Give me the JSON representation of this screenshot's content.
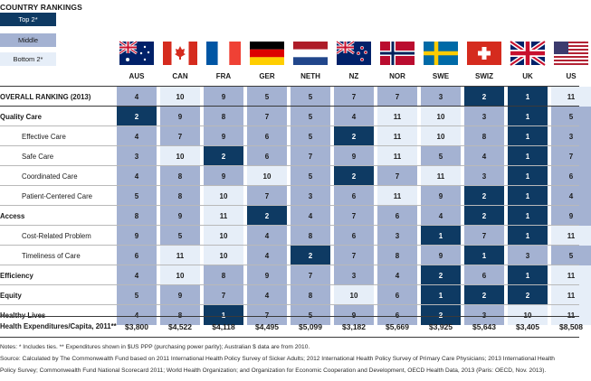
{
  "legend": {
    "title": "COUNTRY RANKINGS",
    "top": "Top 2*",
    "middle": "Middle",
    "bottom": "Bottom 2*",
    "colors": {
      "top": "#0e3a63",
      "middle": "#a4b2d2",
      "bottom": "#e6eef8"
    }
  },
  "chart_data": {
    "type": "table",
    "countries": [
      "AUS",
      "CAN",
      "FRA",
      "GER",
      "NETH",
      "NZ",
      "NOR",
      "SWE",
      "SWIZ",
      "UK",
      "US"
    ],
    "flags": [
      "flag-au-icon",
      "flag-ca-icon",
      "flag-fr-icon",
      "flag-de-icon",
      "flag-nl-icon",
      "flag-nz-icon",
      "flag-no-icon",
      "flag-se-icon",
      "flag-ch-icon",
      "flag-gb-icon",
      "flag-us-icon"
    ],
    "rows": [
      {
        "label": "OVERALL RANKING (2013)",
        "kind": "hdr",
        "ranks": [
          4,
          10,
          9,
          5,
          5,
          7,
          7,
          3,
          2,
          1,
          11
        ],
        "tiers": [
          "m",
          "b",
          "m",
          "m",
          "m",
          "m",
          "m",
          "m",
          "t",
          "t",
          "b"
        ]
      },
      {
        "label": "Quality Care",
        "kind": "main",
        "ranks": [
          2,
          9,
          8,
          7,
          5,
          4,
          11,
          10,
          3,
          1,
          5
        ],
        "tiers": [
          "t",
          "m",
          "m",
          "m",
          "m",
          "m",
          "b",
          "b",
          "m",
          "t",
          "m"
        ]
      },
      {
        "label": "Effective Care",
        "kind": "sub",
        "ranks": [
          4,
          7,
          9,
          6,
          5,
          2,
          11,
          10,
          8,
          1,
          3
        ],
        "tiers": [
          "m",
          "m",
          "m",
          "m",
          "m",
          "t",
          "b",
          "b",
          "m",
          "t",
          "m"
        ]
      },
      {
        "label": "Safe Care",
        "kind": "sub",
        "ranks": [
          3,
          10,
          2,
          6,
          7,
          9,
          11,
          5,
          4,
          1,
          7
        ],
        "tiers": [
          "m",
          "b",
          "t",
          "m",
          "m",
          "m",
          "b",
          "m",
          "m",
          "t",
          "m"
        ]
      },
      {
        "label": "Coordinated Care",
        "kind": "sub",
        "ranks": [
          4,
          8,
          9,
          10,
          5,
          2,
          7,
          11,
          3,
          1,
          6
        ],
        "tiers": [
          "m",
          "m",
          "m",
          "b",
          "m",
          "t",
          "m",
          "b",
          "m",
          "t",
          "m"
        ]
      },
      {
        "label": "Patient-Centered Care",
        "kind": "sub",
        "ranks": [
          5,
          8,
          10,
          7,
          3,
          6,
          11,
          9,
          2,
          1,
          4
        ],
        "tiers": [
          "m",
          "m",
          "b",
          "m",
          "m",
          "m",
          "b",
          "m",
          "t",
          "t",
          "m"
        ]
      },
      {
        "label": "Access",
        "kind": "main",
        "ranks": [
          8,
          9,
          11,
          2,
          4,
          7,
          6,
          4,
          2,
          1,
          9
        ],
        "tiers": [
          "m",
          "m",
          "b",
          "t",
          "m",
          "m",
          "m",
          "m",
          "t",
          "t",
          "m"
        ]
      },
      {
        "label": "Cost-Related Problem",
        "kind": "sub",
        "ranks": [
          9,
          5,
          10,
          4,
          8,
          6,
          3,
          1,
          7,
          1,
          11
        ],
        "tiers": [
          "m",
          "m",
          "b",
          "m",
          "m",
          "m",
          "m",
          "t",
          "m",
          "t",
          "b"
        ]
      },
      {
        "label": "Timeliness of Care",
        "kind": "sub",
        "ranks": [
          6,
          11,
          10,
          4,
          2,
          7,
          8,
          9,
          1,
          3,
          5
        ],
        "tiers": [
          "m",
          "b",
          "b",
          "m",
          "t",
          "m",
          "m",
          "m",
          "t",
          "m",
          "m"
        ]
      },
      {
        "label": "Efficiency",
        "kind": "main",
        "ranks": [
          4,
          10,
          8,
          9,
          7,
          3,
          4,
          2,
          6,
          1,
          11
        ],
        "tiers": [
          "m",
          "b",
          "m",
          "m",
          "m",
          "m",
          "m",
          "t",
          "m",
          "t",
          "b"
        ]
      },
      {
        "label": "Equity",
        "kind": "main",
        "ranks": [
          5,
          9,
          7,
          4,
          8,
          10,
          6,
          1,
          2,
          2,
          11
        ],
        "tiers": [
          "m",
          "m",
          "m",
          "m",
          "m",
          "b",
          "m",
          "t",
          "t",
          "t",
          "b"
        ]
      },
      {
        "label": "Healthy Lives",
        "kind": "main",
        "ranks": [
          4,
          8,
          1,
          7,
          5,
          9,
          6,
          2,
          3,
          10,
          11
        ],
        "tiers": [
          "m",
          "m",
          "t",
          "m",
          "m",
          "m",
          "m",
          "t",
          "m",
          "b",
          "b"
        ]
      }
    ],
    "expenditures": {
      "label": "Health Expenditures/Capita, 2011**",
      "values": [
        "$3,800",
        "$4,522",
        "$4,118",
        "$4,495",
        "$5,099",
        "$3,182",
        "$5,669",
        "$3,925",
        "$5,643",
        "$3,405",
        "$8,508"
      ]
    }
  },
  "notes": [
    "Notes: * Includes ties. ** Expenditures shown in $US PPP (purchasing power parity); Australian $ data are from 2010.",
    "Source: Calculated by The Commonwealth Fund based on 2011 International Health Policy Survey of Sicker Adults; 2012 International Health Policy Survey of Primary Care Physicians; 2013 International Health",
    "Policy Survey; Commonwealth Fund National Scorecard 2011; World Health Organization; and Organization for Economic Cooperation and Development, OECD Health Data, 2013 (Paris: OECD, Nov. 2013)."
  ]
}
